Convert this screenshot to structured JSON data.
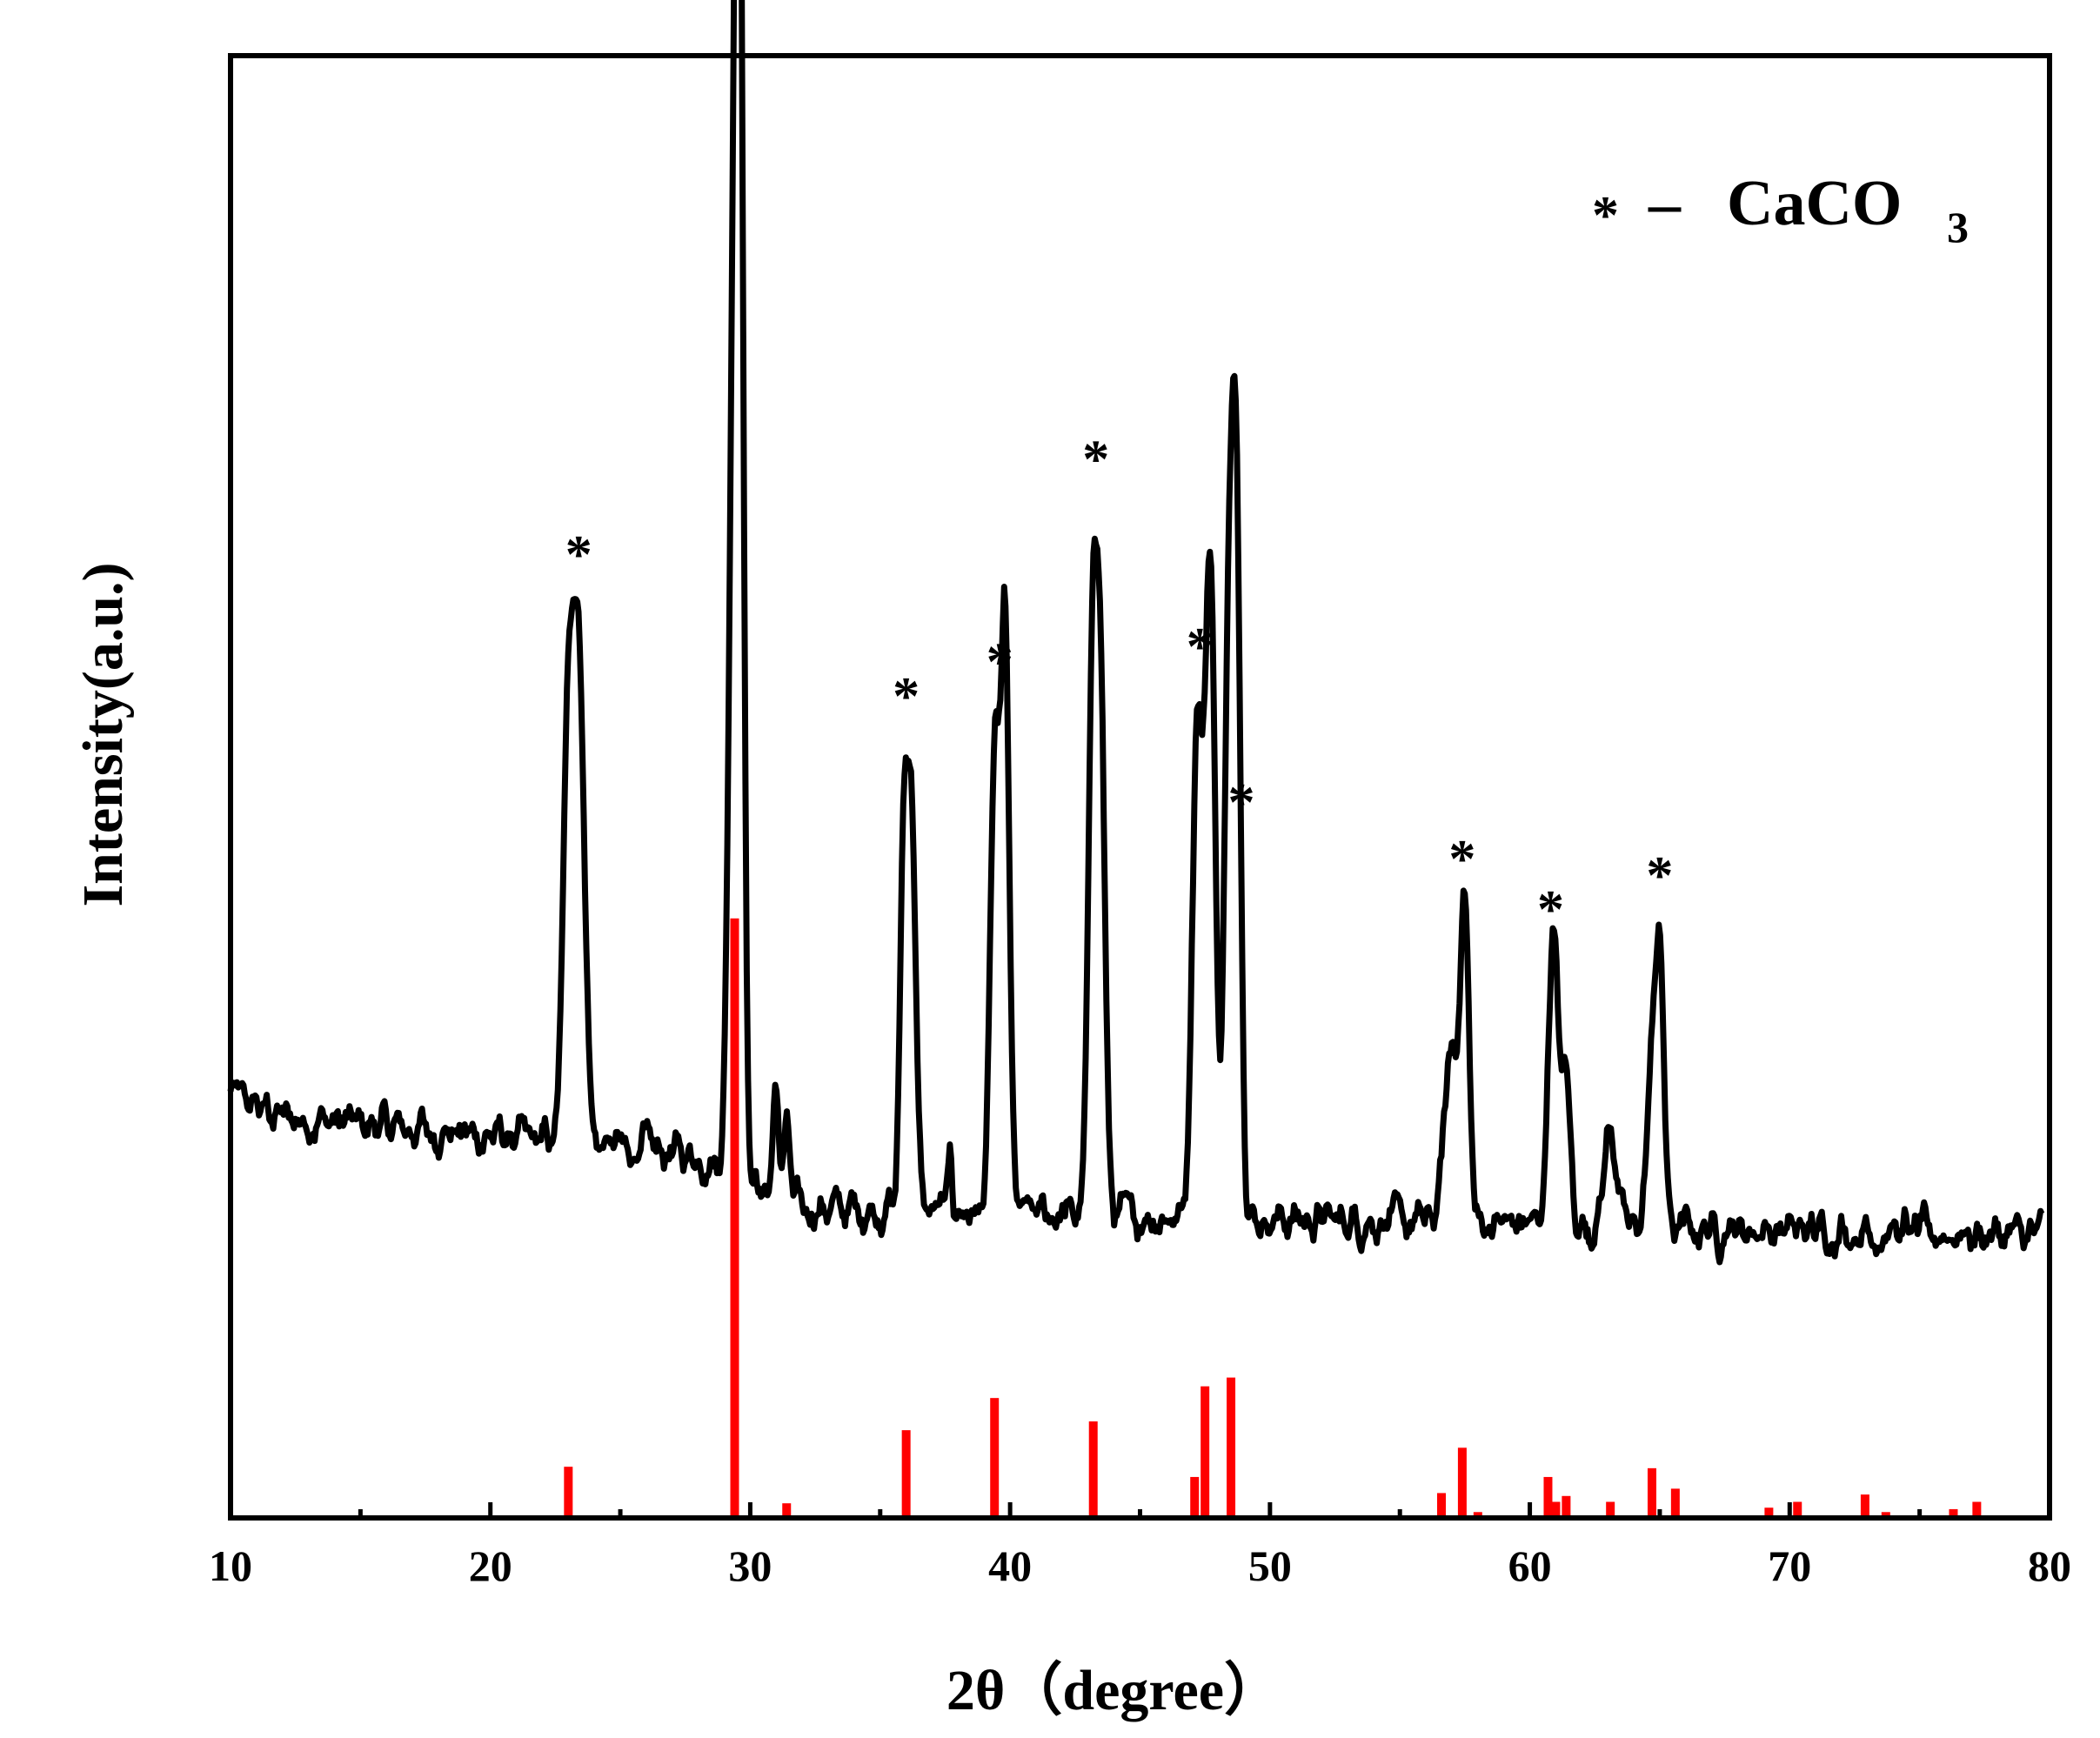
{
  "chart_data": {
    "type": "line",
    "xlabel": "2θ（degree）",
    "ylabel": "Intensity(a.u.)",
    "xlim": [
      10,
      80
    ],
    "ylim": [
      0,
      100
    ],
    "x_ticks": [
      10,
      20,
      30,
      40,
      50,
      60,
      70,
      80
    ],
    "x_minor_ticks": [
      15,
      25,
      35,
      45,
      55,
      65,
      75
    ],
    "y_ticks_shown": false,
    "grid": false,
    "legend": {
      "position": "top-right",
      "marker": "*",
      "dash": "–",
      "label_main": "CaCO",
      "label_sub": "3"
    },
    "series": [
      {
        "color": "#000000",
        "peaks": [
          {
            "x": 23.0,
            "y": 28,
            "w": 0.35
          },
          {
            "x": 23.4,
            "y": 33,
            "w": 0.4
          },
          {
            "x": 29.4,
            "y": 65,
            "w": 0.35
          },
          {
            "x": 29.6,
            "y": 68,
            "w": 0.25
          },
          {
            "x": 31.0,
            "y": 7,
            "w": 0.2
          },
          {
            "x": 31.4,
            "y": 5,
            "w": 0.2
          },
          {
            "x": 35.9,
            "y": 23,
            "w": 0.25
          },
          {
            "x": 36.2,
            "y": 28,
            "w": 0.3
          },
          {
            "x": 37.7,
            "y": 4,
            "w": 0.15
          },
          {
            "x": 39.4,
            "y": 30,
            "w": 0.3
          },
          {
            "x": 39.8,
            "y": 40,
            "w": 0.3
          },
          {
            "x": 43.2,
            "y": 39,
            "w": 0.32
          },
          {
            "x": 43.5,
            "y": 30,
            "w": 0.3
          },
          {
            "x": 47.2,
            "y": 34,
            "w": 0.35
          },
          {
            "x": 47.7,
            "y": 45,
            "w": 0.35
          },
          {
            "x": 48.4,
            "y": 35,
            "w": 0.3
          },
          {
            "x": 48.7,
            "y": 50,
            "w": 0.3
          },
          {
            "x": 57.0,
            "y": 12,
            "w": 0.5
          },
          {
            "x": 57.5,
            "y": 20,
            "w": 0.3
          },
          {
            "x": 60.9,
            "y": 20,
            "w": 0.35
          },
          {
            "x": 61.4,
            "y": 10,
            "w": 0.3
          },
          {
            "x": 63.1,
            "y": 7,
            "w": 0.4
          },
          {
            "x": 64.7,
            "y": 10,
            "w": 0.35
          },
          {
            "x": 65.0,
            "y": 17,
            "w": 0.3
          }
        ]
      },
      {
        "color": "#ff0000",
        "type": "stick",
        "x": [
          23.0,
          29.4,
          31.4,
          36.0,
          39.4,
          43.2,
          47.1,
          47.5,
          48.5,
          56.6,
          57.4,
          58.0,
          60.7,
          61.0,
          61.4,
          63.1,
          64.7,
          65.6,
          69.2,
          70.3,
          72.9,
          73.7,
          76.3,
          77.2
        ],
        "y": [
          3.5,
          41.0,
          1.0,
          6.0,
          8.2,
          6.6,
          2.8,
          9.0,
          9.6,
          1.7,
          4.8,
          0.4,
          2.8,
          1.1,
          1.5,
          1.1,
          3.4,
          2.0,
          0.7,
          1.1,
          1.6,
          0.4,
          0.6,
          1.1
        ]
      }
    ],
    "annotations": [
      {
        "text": "*",
        "x": 23.4
      },
      {
        "text": "*",
        "x": 29.6
      },
      {
        "text": "*",
        "x": 36.0
      },
      {
        "text": "*",
        "x": 39.6
      },
      {
        "text": "*",
        "x": 43.3
      },
      {
        "text": "*",
        "x": 47.3
      },
      {
        "text": "*",
        "x": 48.9
      },
      {
        "text": "*",
        "x": 57.4
      },
      {
        "text": "*",
        "x": 60.8
      },
      {
        "text": "*",
        "x": 65.0
      }
    ]
  }
}
